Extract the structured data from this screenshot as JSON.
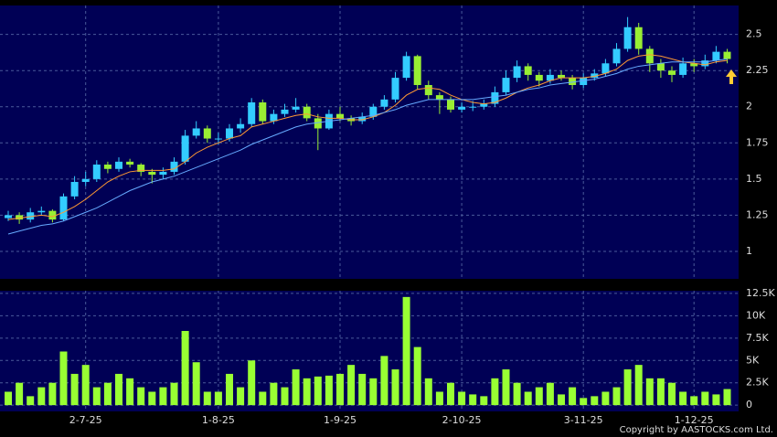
{
  "chart_data": {
    "type": "candlestick",
    "categories": [
      null,
      null,
      null,
      null,
      null,
      null,
      null,
      "2-7-25",
      null,
      null,
      null,
      null,
      null,
      null,
      null,
      null,
      null,
      null,
      null,
      "1-8-25",
      null,
      null,
      null,
      null,
      null,
      null,
      null,
      null,
      null,
      null,
      "1-9-25",
      null,
      null,
      null,
      null,
      null,
      null,
      null,
      null,
      null,
      null,
      "2-10-25",
      null,
      null,
      null,
      null,
      null,
      null,
      null,
      null,
      null,
      null,
      "3-11-25",
      null,
      null,
      null,
      null,
      null,
      null,
      null,
      null,
      null,
      "1-12-25",
      null,
      null,
      null
    ],
    "ohlc": [
      [
        1.23,
        1.28,
        1.21,
        1.25
      ],
      [
        1.25,
        1.27,
        1.19,
        1.22
      ],
      [
        1.22,
        1.3,
        1.2,
        1.27
      ],
      [
        1.27,
        1.31,
        1.25,
        1.28
      ],
      [
        1.28,
        1.29,
        1.2,
        1.22
      ],
      [
        1.22,
        1.4,
        1.21,
        1.38
      ],
      [
        1.38,
        1.52,
        1.36,
        1.48
      ],
      [
        1.48,
        1.55,
        1.45,
        1.5
      ],
      [
        1.5,
        1.63,
        1.48,
        1.6
      ],
      [
        1.6,
        1.62,
        1.54,
        1.57
      ],
      [
        1.57,
        1.65,
        1.55,
        1.62
      ],
      [
        1.62,
        1.64,
        1.58,
        1.6
      ],
      [
        1.6,
        1.61,
        1.52,
        1.55
      ],
      [
        1.55,
        1.57,
        1.47,
        1.53
      ],
      [
        1.53,
        1.58,
        1.5,
        1.55
      ],
      [
        1.55,
        1.65,
        1.53,
        1.62
      ],
      [
        1.62,
        1.84,
        1.6,
        1.8
      ],
      [
        1.8,
        1.9,
        1.78,
        1.85
      ],
      [
        1.85,
        1.87,
        1.75,
        1.78
      ],
      [
        1.78,
        1.82,
        1.74,
        1.78
      ],
      [
        1.78,
        1.88,
        1.76,
        1.85
      ],
      [
        1.85,
        1.92,
        1.82,
        1.88
      ],
      [
        1.88,
        2.06,
        1.86,
        2.03
      ],
      [
        2.03,
        2.05,
        1.88,
        1.9
      ],
      [
        1.9,
        1.98,
        1.88,
        1.95
      ],
      [
        1.95,
        2.02,
        1.93,
        1.98
      ],
      [
        1.98,
        2.06,
        1.96,
        2.0
      ],
      [
        2.0,
        2.02,
        1.9,
        1.92
      ],
      [
        1.92,
        1.95,
        1.7,
        1.85
      ],
      [
        1.85,
        1.98,
        1.84,
        1.95
      ],
      [
        1.95,
        2.0,
        1.9,
        1.92
      ],
      [
        1.92,
        1.94,
        1.87,
        1.9
      ],
      [
        1.9,
        1.96,
        1.88,
        1.93
      ],
      [
        1.93,
        2.02,
        1.91,
        2.0
      ],
      [
        2.0,
        2.08,
        1.98,
        2.05
      ],
      [
        2.05,
        2.24,
        2.03,
        2.2
      ],
      [
        2.2,
        2.38,
        2.18,
        2.35
      ],
      [
        2.35,
        2.36,
        2.12,
        2.15
      ],
      [
        2.15,
        2.18,
        2.05,
        2.08
      ],
      [
        2.08,
        2.1,
        1.95,
        2.05
      ],
      [
        2.05,
        2.07,
        1.96,
        1.98
      ],
      [
        1.98,
        2.03,
        1.96,
        2.0
      ],
      [
        2.0,
        2.04,
        1.97,
        2.0
      ],
      [
        2.0,
        2.05,
        1.98,
        2.02
      ],
      [
        2.02,
        2.14,
        2.0,
        2.1
      ],
      [
        2.1,
        2.25,
        2.08,
        2.2
      ],
      [
        2.2,
        2.32,
        2.17,
        2.28
      ],
      [
        2.28,
        2.3,
        2.18,
        2.22
      ],
      [
        2.22,
        2.24,
        2.14,
        2.18
      ],
      [
        2.18,
        2.26,
        2.16,
        2.22
      ],
      [
        2.22,
        2.25,
        2.18,
        2.2
      ],
      [
        2.2,
        2.22,
        2.12,
        2.15
      ],
      [
        2.15,
        2.23,
        2.13,
        2.2
      ],
      [
        2.2,
        2.26,
        2.18,
        2.23
      ],
      [
        2.23,
        2.33,
        2.21,
        2.3
      ],
      [
        2.3,
        2.44,
        2.28,
        2.4
      ],
      [
        2.4,
        2.62,
        2.38,
        2.55
      ],
      [
        2.55,
        2.58,
        2.36,
        2.4
      ],
      [
        2.4,
        2.42,
        2.24,
        2.3
      ],
      [
        2.3,
        2.33,
        2.2,
        2.25
      ],
      [
        2.25,
        2.28,
        2.17,
        2.22
      ],
      [
        2.22,
        2.34,
        2.2,
        2.3
      ],
      [
        2.3,
        2.33,
        2.24,
        2.28
      ],
      [
        2.28,
        2.36,
        2.26,
        2.32
      ],
      [
        2.32,
        2.42,
        2.3,
        2.38
      ],
      [
        2.38,
        2.4,
        2.3,
        2.33
      ]
    ],
    "up_color": "#33ccff",
    "down_color": "#99ee33",
    "series": [
      {
        "color": "#ff9933",
        "values": [
          1.22,
          1.23,
          1.24,
          1.25,
          1.24,
          1.27,
          1.31,
          1.36,
          1.42,
          1.48,
          1.52,
          1.55,
          1.56,
          1.56,
          1.56,
          1.57,
          1.62,
          1.68,
          1.72,
          1.75,
          1.78,
          1.8,
          1.86,
          1.88,
          1.9,
          1.92,
          1.94,
          1.95,
          1.93,
          1.92,
          1.92,
          1.91,
          1.91,
          1.93,
          1.96,
          2.01,
          2.08,
          2.12,
          2.13,
          2.12,
          2.08,
          2.05,
          2.03,
          2.02,
          2.03,
          2.06,
          2.1,
          2.13,
          2.15,
          2.18,
          2.2,
          2.2,
          2.2,
          2.21,
          2.23,
          2.26,
          2.32,
          2.35,
          2.36,
          2.35,
          2.33,
          2.31,
          2.3,
          2.29,
          2.31,
          2.32
        ]
      },
      {
        "color": "#66aaff",
        "values": [
          1.12,
          1.14,
          1.16,
          1.18,
          1.19,
          1.21,
          1.24,
          1.27,
          1.3,
          1.34,
          1.38,
          1.42,
          1.45,
          1.48,
          1.5,
          1.52,
          1.55,
          1.58,
          1.61,
          1.64,
          1.67,
          1.7,
          1.74,
          1.77,
          1.8,
          1.83,
          1.86,
          1.88,
          1.89,
          1.9,
          1.91,
          1.92,
          1.93,
          1.94,
          1.96,
          1.98,
          2.01,
          2.03,
          2.05,
          2.05,
          2.05,
          2.05,
          2.05,
          2.06,
          2.07,
          2.08,
          2.1,
          2.12,
          2.13,
          2.15,
          2.16,
          2.17,
          2.18,
          2.19,
          2.21,
          2.23,
          2.26,
          2.28,
          2.29,
          2.3,
          2.31,
          2.31,
          2.31,
          2.31,
          2.32,
          2.33
        ]
      }
    ],
    "ylim": [
      0.81,
      2.7
    ],
    "yticks": [
      1,
      1.25,
      1.5,
      1.75,
      2,
      2.25,
      2.5
    ],
    "volume": {
      "color": "#99ff33",
      "values": [
        1500,
        2500,
        1000,
        2000,
        2500,
        6000,
        3500,
        4500,
        2000,
        2500,
        3500,
        3000,
        2000,
        1500,
        2000,
        2500,
        8300,
        4800,
        1500,
        1500,
        3500,
        2000,
        5000,
        1500,
        2500,
        2000,
        4000,
        3000,
        3200,
        3300,
        3500,
        4500,
        3500,
        3000,
        5500,
        4000,
        12100,
        6500,
        3000,
        1500,
        2500,
        1500,
        1200,
        1000,
        3000,
        4000,
        2500,
        1500,
        2000,
        2500,
        1200,
        2000,
        800,
        1000,
        1500,
        2000,
        4000,
        4500,
        3000,
        3000,
        2500,
        1500,
        1000,
        1500,
        1200,
        1800
      ],
      "ylim": [
        -700,
        12800
      ],
      "yticks": [
        0,
        {
          "value": 2500,
          "label": "2.5K"
        },
        {
          "value": 5000,
          "label": "5K"
        },
        {
          "value": 7500,
          "label": "7.5K"
        },
        {
          "value": 10000,
          "label": "10K"
        },
        {
          "value": 12500,
          "label": "12.5K"
        }
      ]
    },
    "grid": true,
    "copyright": "Copyright by AASTOCKS.com Ltd."
  }
}
